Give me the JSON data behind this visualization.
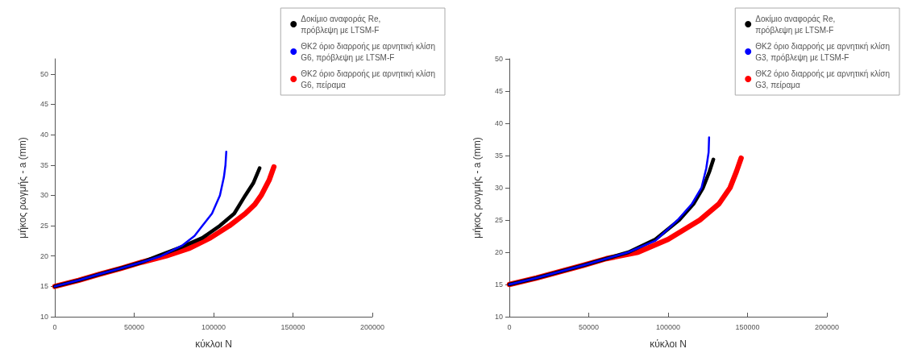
{
  "chart_data": [
    {
      "type": "line",
      "xlabel": "κύκλοι N",
      "ylabel": "μήκος ρωγμής - a (mm)",
      "xlim": [
        0,
        200000
      ],
      "xticks": [
        0,
        50000,
        100000,
        150000,
        200000
      ],
      "ylim": [
        10,
        52.5
      ],
      "yticks": [
        10,
        15,
        20,
        25,
        30,
        35,
        40,
        45,
        50
      ],
      "legend": "top right",
      "marker": "none",
      "grid": false,
      "series": [
        {
          "name": "Δοκίμιο αναφοράς Re,\nπρόβλεψη με LTSM-F",
          "color": "#000000",
          "x": [
            0,
            15000,
            28000,
            42000,
            55000,
            65000,
            80000,
            93000,
            104000,
            113000,
            120000,
            125000,
            129000
          ],
          "values": [
            15,
            16,
            17,
            18,
            19,
            20,
            21.5,
            23,
            25,
            27,
            30,
            32,
            34.5
          ]
        },
        {
          "name": "ΘΚ2 όριο διαρροής με αρνητική κλίση\nG6, πρόβλεψη με LTSM-F",
          "color": "#0000ff",
          "x": [
            0,
            15000,
            28000,
            42000,
            55000,
            67000,
            80000,
            88000,
            93000,
            99000,
            104000,
            106500,
            107500,
            108000
          ],
          "values": [
            15,
            16,
            17,
            18,
            19,
            20,
            21.7,
            23.3,
            25,
            27,
            30,
            33,
            35,
            37.2
          ]
        },
        {
          "name": "ΘΚ2 όριο διαρροής με αρνητική κλίση\nG6, πείραμα",
          "color": "#ff0000",
          "x": [
            0,
            15000,
            28000,
            42000,
            55000,
            70000,
            85000,
            98000,
            110000,
            120000,
            126000,
            130000,
            135000,
            138000
          ],
          "values": [
            15,
            16,
            17,
            18,
            19,
            20,
            21.3,
            23,
            25,
            27,
            28.5,
            30,
            32.5,
            34.7
          ]
        }
      ]
    },
    {
      "type": "line",
      "xlabel": "κύκλοι N",
      "ylabel": "μήκος ρωγμής - a (mm)",
      "xlim": [
        0,
        200000
      ],
      "xticks": [
        0,
        50000,
        100000,
        150000,
        200000
      ],
      "ylim": [
        10,
        50
      ],
      "yticks": [
        10,
        15,
        20,
        25,
        30,
        35,
        40,
        45,
        50
      ],
      "legend": "top right",
      "marker": "none",
      "grid": false,
      "series": [
        {
          "name": "Δοκίμιο αναφοράς Re,\nπρόβλεψη με LTSM-F",
          "color": "#000000",
          "x": [
            0,
            17000,
            32000,
            47000,
            61000,
            75000,
            92000,
            107000,
            116000,
            122000,
            126000,
            128500
          ],
          "values": [
            15,
            16,
            17,
            18,
            19,
            20,
            22,
            25,
            27.5,
            30,
            32.5,
            34.4
          ]
        },
        {
          "name": "ΘΚ2 όριο διαρροής με αρνητική κλίση\nG3, πρόβλεψη με LTSM-F",
          "color": "#0000ff",
          "x": [
            0,
            17000,
            32000,
            47000,
            61000,
            75000,
            92000,
            106000,
            115000,
            121000,
            124000,
            125500,
            125800
          ],
          "values": [
            15,
            16,
            17,
            18,
            19,
            20,
            21.8,
            25,
            27.5,
            30,
            33,
            35.5,
            37.8
          ]
        },
        {
          "name": "ΘΚ2 όριο διαρροής με αρνητική κλίση\nG3, πείραμα",
          "color": "#ff0000",
          "x": [
            0,
            17000,
            32000,
            47000,
            61000,
            81000,
            100000,
            120000,
            132000,
            139000,
            143000,
            146000
          ],
          "values": [
            15,
            16,
            17,
            18,
            19,
            20,
            22,
            25,
            27.5,
            30,
            32.5,
            34.6
          ]
        }
      ]
    }
  ]
}
